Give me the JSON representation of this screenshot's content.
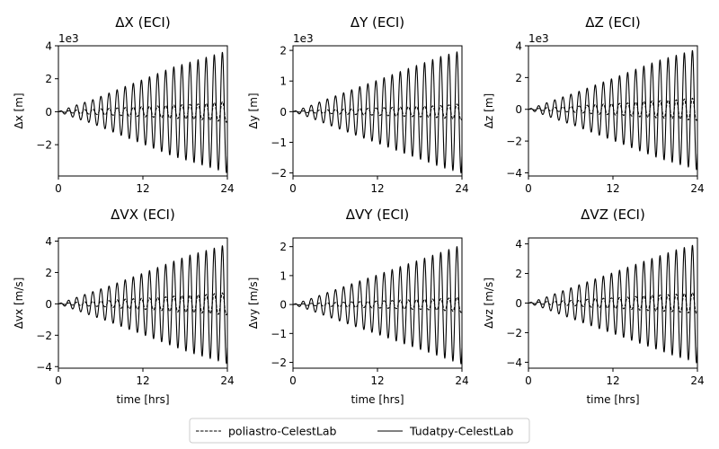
{
  "legend": {
    "entries": [
      {
        "name": "poliastro-CelestLab",
        "style": "dashed"
      },
      {
        "name": "Tudatpy-CelestLab",
        "style": "solid"
      }
    ],
    "placement": "bottom-center"
  },
  "chart_data": [
    {
      "type": "line",
      "title": "ΔX (ECI)",
      "xlabel": "",
      "ylabel": "Δx [m]",
      "offset_text": "1e3",
      "xlim": [
        0,
        24
      ],
      "ylim": [
        -3.9,
        4.0
      ],
      "xticks": [
        0,
        12,
        24
      ],
      "xtick_labels": [
        "0",
        "12",
        "24"
      ],
      "yticks": [
        -2,
        0,
        2,
        4
      ],
      "ytick_labels": [
        "−2",
        "0",
        "2",
        "4"
      ],
      "series": [
        {
          "name": "poliastro-CelestLab",
          "dash": true,
          "x": [
            0,
            2.5,
            4.7,
            7.0,
            9.3,
            11.7,
            14.0,
            16.3,
            18.7,
            21.0,
            23.3,
            24.0
          ],
          "y": [
            0,
            0.1,
            0.15,
            0.2,
            0.25,
            0.3,
            0.35,
            0.4,
            0.45,
            0.5,
            0.6,
            0.65
          ]
        },
        {
          "name": "Tudatpy-CelestLab",
          "dash": false,
          "x": [
            0,
            2.5,
            4.7,
            7.0,
            9.3,
            11.7,
            14.0,
            16.3,
            18.7,
            21.0,
            23.3,
            24.0
          ],
          "y": [
            0,
            0.4,
            0.7,
            1.1,
            1.5,
            1.9,
            2.3,
            2.7,
            3.0,
            3.3,
            3.6,
            3.7
          ]
        }
      ],
      "oscillation_period_hrs": 1.15
    },
    {
      "type": "line",
      "title": "ΔY (ECI)",
      "xlabel": "",
      "ylabel": "Δy [m]",
      "offset_text": "1e3",
      "xlim": [
        0,
        24
      ],
      "ylim": [
        -2.1,
        2.15
      ],
      "xticks": [
        0,
        12,
        24
      ],
      "xtick_labels": [
        "0",
        "12",
        "24"
      ],
      "yticks": [
        -2,
        -1,
        0,
        1,
        2
      ],
      "ytick_labels": [
        "−2",
        "−1",
        "0",
        "1",
        "2"
      ],
      "series": [
        {
          "name": "poliastro-CelestLab",
          "dash": true,
          "x": [
            0,
            2.5,
            4.7,
            7.0,
            9.3,
            11.7,
            14.0,
            16.3,
            18.7,
            21.0,
            23.3,
            24.0
          ],
          "y": [
            0,
            0.04,
            0.06,
            0.08,
            0.1,
            0.12,
            0.14,
            0.16,
            0.18,
            0.2,
            0.25,
            0.28
          ]
        },
        {
          "name": "Tudatpy-CelestLab",
          "dash": false,
          "x": [
            0,
            2.5,
            4.7,
            7.0,
            9.3,
            11.7,
            14.0,
            16.3,
            18.7,
            21.0,
            23.3,
            24.0
          ],
          "y": [
            0,
            0.2,
            0.4,
            0.6,
            0.8,
            1.0,
            1.2,
            1.4,
            1.6,
            1.8,
            1.95,
            2.0
          ]
        }
      ],
      "oscillation_period_hrs": 1.15
    },
    {
      "type": "line",
      "title": "ΔZ (ECI)",
      "xlabel": "",
      "ylabel": "Δz [m]",
      "offset_text": "1e3",
      "xlim": [
        0,
        24
      ],
      "ylim": [
        -4.2,
        4.0
      ],
      "xticks": [
        0,
        12,
        24
      ],
      "xtick_labels": [
        "0",
        "12",
        "24"
      ],
      "yticks": [
        -4,
        -2,
        0,
        2,
        4
      ],
      "ytick_labels": [
        "−4",
        "−2",
        "0",
        "2",
        "4"
      ],
      "series": [
        {
          "name": "poliastro-CelestLab",
          "dash": true,
          "x": [
            0,
            2.5,
            4.7,
            7.0,
            9.3,
            11.7,
            14.0,
            16.3,
            18.7,
            21.0,
            23.3,
            24.0
          ],
          "y": [
            0,
            0.1,
            0.15,
            0.2,
            0.3,
            0.35,
            0.4,
            0.5,
            0.55,
            0.6,
            0.7,
            0.7
          ]
        },
        {
          "name": "Tudatpy-CelestLab",
          "dash": false,
          "x": [
            0,
            2.5,
            4.7,
            7.0,
            9.3,
            11.7,
            14.0,
            16.3,
            18.7,
            21.0,
            23.3,
            24.0
          ],
          "y": [
            0,
            0.4,
            0.75,
            1.1,
            1.5,
            1.9,
            2.3,
            2.7,
            3.1,
            3.4,
            3.7,
            3.8
          ]
        }
      ],
      "oscillation_period_hrs": 1.15
    },
    {
      "type": "line",
      "title": "ΔVX (ECI)",
      "xlabel": "time [hrs]",
      "ylabel": "Δvx [m/s]",
      "offset_text": "",
      "xlim": [
        0,
        24
      ],
      "ylim": [
        -4.1,
        4.2
      ],
      "xticks": [
        0,
        12,
        24
      ],
      "xtick_labels": [
        "0",
        "12",
        "24"
      ],
      "yticks": [
        -4,
        -2,
        0,
        2,
        4
      ],
      "ytick_labels": [
        "−4",
        "−2",
        "0",
        "2",
        "4"
      ],
      "series": [
        {
          "name": "poliastro-CelestLab",
          "dash": true,
          "x": [
            0,
            2.5,
            4.7,
            7.0,
            9.3,
            11.7,
            14.0,
            16.3,
            18.7,
            21.0,
            23.3,
            24.0
          ],
          "y": [
            0,
            0.1,
            0.15,
            0.2,
            0.3,
            0.35,
            0.4,
            0.5,
            0.55,
            0.6,
            0.7,
            0.7
          ]
        },
        {
          "name": "Tudatpy-CelestLab",
          "dash": false,
          "x": [
            0,
            2.5,
            4.7,
            7.0,
            9.3,
            11.7,
            14.0,
            16.3,
            18.7,
            21.0,
            23.3,
            24.0
          ],
          "y": [
            0,
            0.4,
            0.75,
            1.1,
            1.5,
            1.9,
            2.3,
            2.7,
            3.1,
            3.4,
            3.7,
            3.8
          ]
        }
      ],
      "oscillation_period_hrs": 1.15
    },
    {
      "type": "line",
      "title": "ΔVY (ECI)",
      "xlabel": "time [hrs]",
      "ylabel": "Δvy [m/s]",
      "offset_text": "",
      "xlim": [
        0,
        24
      ],
      "ylim": [
        -2.2,
        2.3
      ],
      "xticks": [
        0,
        12,
        24
      ],
      "xtick_labels": [
        "0",
        "12",
        "24"
      ],
      "yticks": [
        -2,
        -1,
        0,
        1,
        2
      ],
      "ytick_labels": [
        "−2",
        "−1",
        "0",
        "1",
        "2"
      ],
      "series": [
        {
          "name": "poliastro-CelestLab",
          "dash": true,
          "x": [
            0,
            2.5,
            4.7,
            7.0,
            9.3,
            11.7,
            14.0,
            16.3,
            18.7,
            21.0,
            23.3,
            24.0
          ],
          "y": [
            0,
            0.04,
            0.06,
            0.08,
            0.1,
            0.12,
            0.14,
            0.16,
            0.18,
            0.2,
            0.25,
            0.28
          ]
        },
        {
          "name": "Tudatpy-CelestLab",
          "dash": false,
          "x": [
            0,
            2.5,
            4.7,
            7.0,
            9.3,
            11.7,
            14.0,
            16.3,
            18.7,
            21.0,
            23.3,
            24.0
          ],
          "y": [
            0,
            0.2,
            0.4,
            0.6,
            0.8,
            1.0,
            1.2,
            1.4,
            1.6,
            1.8,
            2.0,
            2.05
          ]
        }
      ],
      "oscillation_period_hrs": 1.15
    },
    {
      "type": "line",
      "title": "ΔVZ (ECI)",
      "xlabel": "time [hrs]",
      "ylabel": "Δvz [m/s]",
      "offset_text": "",
      "xlim": [
        0,
        24
      ],
      "ylim": [
        -4.4,
        4.4
      ],
      "xticks": [
        0,
        12,
        24
      ],
      "xtick_labels": [
        "0",
        "12",
        "24"
      ],
      "yticks": [
        -4,
        -2,
        0,
        2,
        4
      ],
      "ytick_labels": [
        "−4",
        "−2",
        "0",
        "2",
        "4"
      ],
      "series": [
        {
          "name": "poliastro-CelestLab",
          "dash": true,
          "x": [
            0,
            2.5,
            4.7,
            7.0,
            9.3,
            11.7,
            14.0,
            16.3,
            18.7,
            21.0,
            23.3,
            24.0
          ],
          "y": [
            0,
            0.1,
            0.15,
            0.2,
            0.3,
            0.35,
            0.4,
            0.5,
            0.55,
            0.6,
            0.7,
            0.7
          ]
        },
        {
          "name": "Tudatpy-CelestLab",
          "dash": false,
          "x": [
            0,
            2.5,
            4.7,
            7.0,
            9.3,
            11.7,
            14.0,
            16.3,
            18.7,
            21.0,
            23.3,
            24.0
          ],
          "y": [
            0,
            0.4,
            0.8,
            1.2,
            1.6,
            2.0,
            2.4,
            2.8,
            3.2,
            3.6,
            3.9,
            4.05
          ]
        }
      ],
      "oscillation_period_hrs": 1.15
    }
  ]
}
